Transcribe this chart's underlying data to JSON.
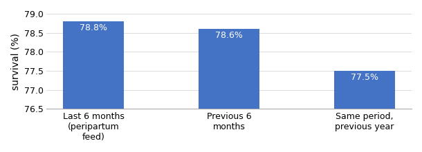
{
  "categories": [
    "Last 6 months\n(peripartum\nfeed)",
    "Previous 6\nmonths",
    "Same period,\nprevious year"
  ],
  "values": [
    78.8,
    78.6,
    77.5
  ],
  "bar_color": "#4472C4",
  "ylabel": "survival (%)",
  "ylim": [
    76.5,
    79.0
  ],
  "yticks": [
    76.5,
    77.0,
    77.5,
    78.0,
    78.5,
    79.0
  ],
  "bar_labels": [
    "78.8%",
    "78.6%",
    "77.5%"
  ],
  "label_color": "#ffffff",
  "label_fontsize": 9,
  "ylabel_fontsize": 10,
  "tick_fontsize": 9,
  "background_color": "#ffffff",
  "bar_width": 0.45
}
